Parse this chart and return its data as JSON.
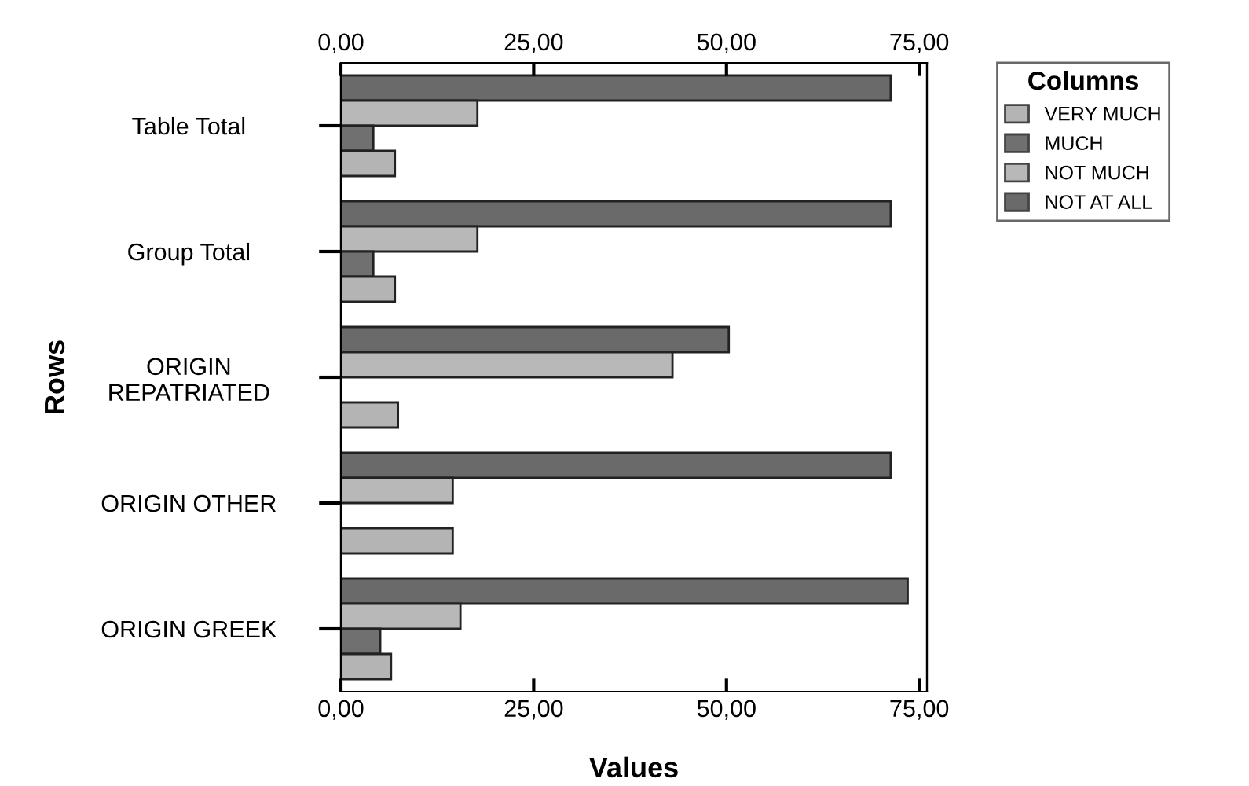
{
  "chart_data": {
    "type": "bar",
    "orientation": "horizontal",
    "xlabel": "Values",
    "ylabel": "Rows",
    "legend_title": "Columns",
    "legend": "top right",
    "grid": false,
    "categories": [
      "Table Total",
      "Group Total",
      "ORIGIN\nREPATRIATED",
      "ORIGIN OTHER",
      "ORIGIN GREEK"
    ],
    "series": [
      {
        "name": "NOT AT ALL",
        "color": "#6a6a6a",
        "values": [
          71.3,
          71.3,
          50.3,
          71.3,
          73.5
        ]
      },
      {
        "name": "NOT MUCH",
        "color": "#b8b8b8",
        "values": [
          17.7,
          17.7,
          43.0,
          14.5,
          15.5
        ]
      },
      {
        "name": "MUCH",
        "color": "#707070",
        "values": [
          4.2,
          4.2,
          null,
          null,
          5.1
        ]
      },
      {
        "name": "VERY MUCH",
        "color": "#b4b4b4",
        "values": [
          7.0,
          7.0,
          7.4,
          14.5,
          6.5
        ]
      }
    ],
    "xlim": [
      0,
      76
    ],
    "xticks": [
      {
        "value": 0,
        "label": "0,00"
      },
      {
        "value": 25,
        "label": "25,00"
      },
      {
        "value": 50,
        "label": "50,00"
      },
      {
        "value": 75,
        "label": "75,00"
      }
    ],
    "x2lim": [
      0,
      76
    ],
    "x2ticks": [
      {
        "value": 0,
        "label": "0,00"
      },
      {
        "value": 25,
        "label": "25,00"
      },
      {
        "value": 50,
        "label": "50,00"
      },
      {
        "value": 75,
        "label": "75,00"
      }
    ]
  }
}
